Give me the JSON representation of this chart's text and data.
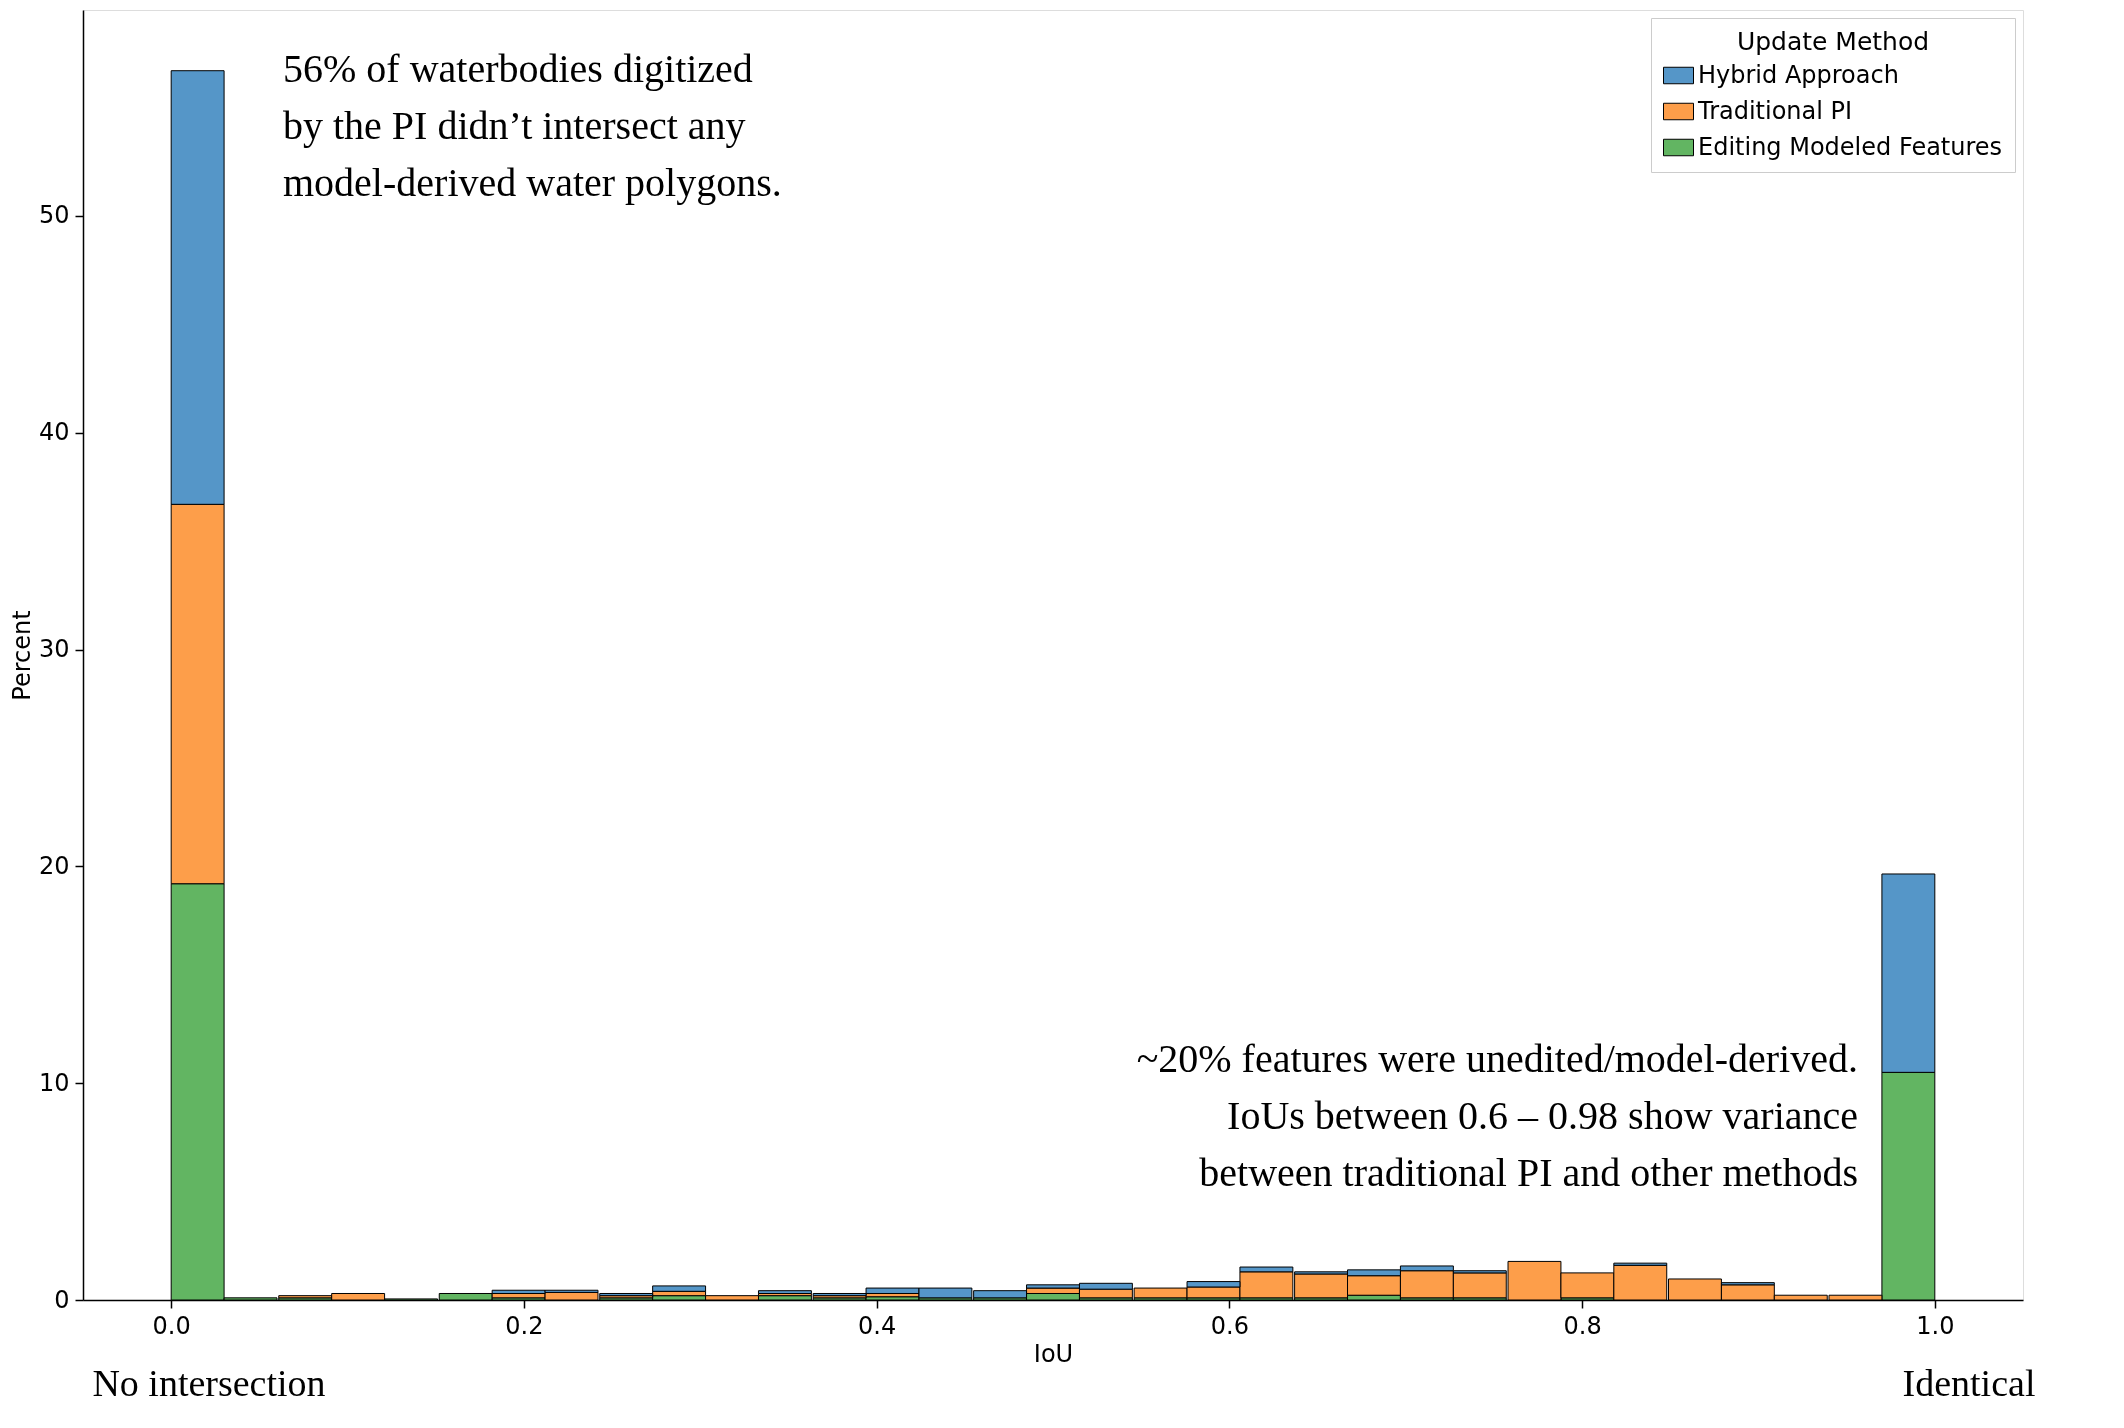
{
  "chart_data": {
    "type": "bar",
    "stacked": true,
    "xlabel": "IoU",
    "ylabel": "Percent",
    "legend_title": "Update Method",
    "x": [
      0.015,
      0.045,
      0.076,
      0.106,
      0.136,
      0.167,
      0.197,
      0.227,
      0.258,
      0.288,
      0.318,
      0.348,
      0.379,
      0.409,
      0.439,
      0.47,
      0.5,
      0.53,
      0.561,
      0.591,
      0.621,
      0.652,
      0.682,
      0.712,
      0.742,
      0.773,
      0.803,
      0.833,
      0.864,
      0.894,
      0.924,
      0.955,
      0.985
    ],
    "series": [
      {
        "name": "Editing Modeled Features",
        "color": "#62b562",
        "values": [
          19.2,
          0.1,
          0.1,
          null,
          0.05,
          0.3,
          0.1,
          null,
          0.1,
          0.2,
          null,
          0.2,
          0.1,
          0.15,
          0.1,
          0.1,
          0.3,
          0.1,
          0.1,
          0.1,
          0.1,
          0.1,
          0.22,
          0.1,
          0.1,
          null,
          0.1,
          null,
          null,
          null,
          null,
          null,
          10.5
        ]
      },
      {
        "name": "Traditional PI",
        "color": "#fd9e4a",
        "values": [
          17.5,
          null,
          0.1,
          0.3,
          null,
          null,
          0.2,
          0.35,
          0.1,
          0.2,
          0.2,
          0.1,
          0.1,
          0.15,
          null,
          null,
          0.25,
          0.4,
          0.45,
          0.5,
          1.2,
          1.1,
          0.9,
          1.25,
          1.15,
          1.78,
          1.15,
          1.6,
          0.97,
          0.7,
          0.22,
          0.22,
          null
        ]
      },
      {
        "name": "Hybrid Approach",
        "color": "#5596c8",
        "values": [
          20.0,
          null,
          null,
          null,
          null,
          null,
          0.15,
          0.1,
          0.1,
          0.25,
          null,
          0.13,
          0.1,
          0.25,
          0.45,
          0.33,
          0.15,
          0.27,
          null,
          0.25,
          0.22,
          0.1,
          0.27,
          0.22,
          0.1,
          null,
          null,
          0.1,
          null,
          0.1,
          null,
          null,
          9.15
        ]
      }
    ],
    "xlim": [
      -0.05,
      1.05
    ],
    "ylim": [
      0,
      59.5
    ],
    "xticks": [
      {
        "value": 0,
        "label": "0.0"
      },
      0.2,
      0.4,
      0.6,
      0.8,
      {
        "value": 1,
        "label": "1.0"
      }
    ],
    "yticks": [
      0,
      10,
      20,
      30,
      40,
      50
    ],
    "legend": "top right",
    "annotations": [
      "56% of waterbodies digitized\nby the PI didn’t intersect any\nmodel-derived water polygons.",
      "~20% features were unedited/model-derived.\nIoUs between 0.6 – 0.98 show variance\nbetween traditional PI and other methods",
      "No intersection",
      "Identical"
    ]
  }
}
